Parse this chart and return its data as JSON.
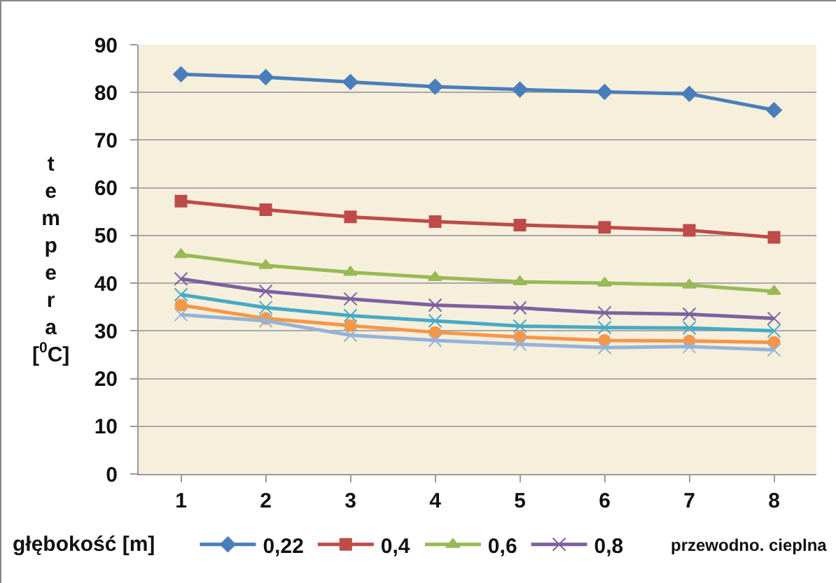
{
  "chart_data": {
    "type": "line",
    "xlabel": "głębokość [m]",
    "ylabel": "tempera [$^{0}$C]",
    "legend_title": "przewodno. cieplna",
    "categories": [
      "1",
      "2",
      "3",
      "4",
      "5",
      "6",
      "7",
      "8"
    ],
    "series": [
      {
        "name": "0,22",
        "color": "#4a7ebb",
        "marker": "diamond",
        "values": [
          83.8,
          83.2,
          82.2,
          81.2,
          80.6,
          80.1,
          79.7,
          76.3
        ]
      },
      {
        "name": "0,4",
        "color": "#be4b48",
        "marker": "square",
        "values": [
          57.2,
          55.4,
          53.9,
          52.9,
          52.2,
          51.7,
          51.1,
          49.6
        ]
      },
      {
        "name": "0,6",
        "color": "#98b954",
        "marker": "triangle",
        "values": [
          46.0,
          43.7,
          42.3,
          41.2,
          40.3,
          40.0,
          39.6,
          38.3
        ]
      },
      {
        "name": "0,8",
        "color": "#7d60a0",
        "marker": "cross",
        "values": [
          40.9,
          38.3,
          36.7,
          35.4,
          34.8,
          33.8,
          33.5,
          32.6
        ]
      },
      {
        "color": "#46aac5",
        "marker": "cross",
        "values": [
          37.6,
          34.9,
          33.2,
          32.1,
          31.0,
          30.7,
          30.6,
          30.0
        ]
      },
      {
        "color": "#f79646",
        "marker": "circle",
        "values": [
          35.4,
          32.6,
          31.1,
          29.7,
          28.7,
          28.0,
          27.9,
          27.6
        ]
      },
      {
        "color": "#95b3d7",
        "marker": "cross",
        "values": [
          33.4,
          32.1,
          29.1,
          28.0,
          27.2,
          26.5,
          26.7,
          26.0
        ]
      }
    ],
    "ylim": [
      0,
      90
    ],
    "yticks": [
      0,
      10,
      20,
      30,
      40,
      50,
      60,
      70,
      80,
      90
    ],
    "grid": "y",
    "legend": "bottom",
    "line_style": "solid"
  }
}
